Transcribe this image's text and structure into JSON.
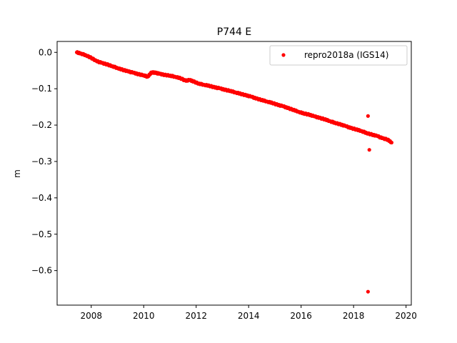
{
  "chart_data": {
    "type": "scatter",
    "title": "P744 E",
    "xlabel": "",
    "ylabel": "m",
    "xlim": [
      2006.7,
      2020.2
    ],
    "ylim": [
      -0.695,
      0.03
    ],
    "xticks": [
      2008,
      2010,
      2012,
      2014,
      2016,
      2018,
      2020
    ],
    "xtick_labels": [
      "2008",
      "2010",
      "2012",
      "2014",
      "2016",
      "2018",
      "2020"
    ],
    "yticks": [
      0.0,
      -0.1,
      -0.2,
      -0.3,
      -0.4,
      -0.5,
      -0.6
    ],
    "ytick_labels": [
      "0.0",
      "−0.1",
      "−0.2",
      "−0.3",
      "−0.4",
      "−0.5",
      "−0.6"
    ],
    "grid": false,
    "legend_position": "top-right",
    "series": [
      {
        "name": "repro2018a (IGS14)",
        "color": "#ff0000",
        "marker": "dot",
        "x": [
          2007.45,
          2007.6,
          2007.8,
          2008.0,
          2008.2,
          2008.4,
          2008.6,
          2008.8,
          2009.0,
          2009.2,
          2009.4,
          2009.6,
          2009.8,
          2010.0,
          2010.15,
          2010.3,
          2010.45,
          2010.6,
          2010.8,
          2011.0,
          2011.2,
          2011.4,
          2011.6,
          2011.75,
          2011.9,
          2012.1,
          2012.3,
          2012.5,
          2012.7,
          2012.9,
          2013.1,
          2013.3,
          2013.5,
          2013.7,
          2013.9,
          2014.1,
          2014.3,
          2014.5,
          2014.7,
          2014.9,
          2015.1,
          2015.3,
          2015.5,
          2015.7,
          2015.9,
          2016.1,
          2016.3,
          2016.5,
          2016.7,
          2016.9,
          2017.1,
          2017.3,
          2017.5,
          2017.7,
          2017.9,
          2018.1,
          2018.3,
          2018.5,
          2018.7,
          2018.9,
          2019.1,
          2019.3,
          2019.45,
          2018.55,
          2018.6,
          2018.55
        ],
        "y": [
          0.0,
          -0.003,
          -0.008,
          -0.015,
          -0.024,
          -0.029,
          -0.033,
          -0.038,
          -0.043,
          -0.048,
          -0.052,
          -0.056,
          -0.06,
          -0.063,
          -0.067,
          -0.055,
          -0.056,
          -0.059,
          -0.062,
          -0.064,
          -0.067,
          -0.071,
          -0.078,
          -0.076,
          -0.08,
          -0.086,
          -0.089,
          -0.092,
          -0.096,
          -0.099,
          -0.103,
          -0.106,
          -0.11,
          -0.114,
          -0.118,
          -0.122,
          -0.127,
          -0.131,
          -0.135,
          -0.139,
          -0.144,
          -0.148,
          -0.153,
          -0.158,
          -0.163,
          -0.168,
          -0.171,
          -0.176,
          -0.18,
          -0.184,
          -0.189,
          -0.194,
          -0.198,
          -0.203,
          -0.208,
          -0.212,
          -0.216,
          -0.222,
          -0.226,
          -0.23,
          -0.236,
          -0.24,
          -0.248,
          -0.175,
          -0.268,
          -0.658
        ]
      }
    ]
  }
}
